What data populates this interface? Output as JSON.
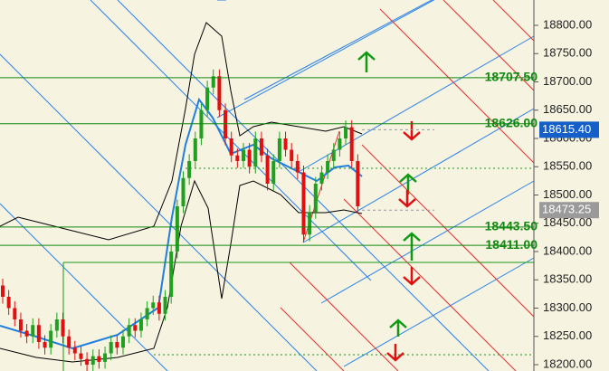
{
  "chart_data": {
    "type": "candlestick",
    "up_color": "#1fa01f",
    "down_color": "#e01010",
    "open": [
      18340,
      18320,
      18300,
      18280,
      18260,
      18250,
      18270,
      18240,
      18230,
      18260,
      18280,
      18250,
      18230,
      18220,
      18210,
      18200,
      18215,
      18205,
      18220,
      18240,
      18230,
      18250,
      18270,
      18260,
      18280,
      18300,
      18310,
      18290,
      18320,
      18400,
      18480,
      18530,
      18560,
      18600,
      18650,
      18690,
      18710,
      18650,
      18600,
      18570,
      18560,
      18580,
      18550,
      18600,
      18570,
      18520,
      18560,
      18600,
      18580,
      18560,
      18540,
      18430,
      18470,
      18520,
      18540,
      18560,
      18580,
      18600,
      18620,
      18560
    ],
    "high": [
      18352,
      18332,
      18312,
      18292,
      18272,
      18282,
      18282,
      18252,
      18272,
      18292,
      18292,
      18262,
      18242,
      18232,
      18222,
      18227,
      18227,
      18232,
      18252,
      18252,
      18262,
      18282,
      18282,
      18292,
      18312,
      18322,
      18322,
      18332,
      18412,
      18492,
      18542,
      18572,
      18612,
      18662,
      18702,
      18722,
      18722,
      18662,
      18612,
      18582,
      18592,
      18592,
      18612,
      18612,
      18582,
      18572,
      18612,
      18612,
      18592,
      18572,
      18552,
      18482,
      18532,
      18552,
      18572,
      18592,
      18612,
      18632,
      18632,
      18572
    ],
    "low": [
      18308,
      18288,
      18268,
      18248,
      18238,
      18238,
      18228,
      18218,
      18218,
      18248,
      18238,
      18218,
      18208,
      18198,
      18188,
      18188,
      18193,
      18193,
      18208,
      18218,
      18218,
      18238,
      18248,
      18248,
      18268,
      18288,
      18278,
      18278,
      18308,
      18388,
      18468,
      18518,
      18548,
      18588,
      18638,
      18678,
      18638,
      18588,
      18558,
      18548,
      18548,
      18538,
      18538,
      18558,
      18508,
      18508,
      18548,
      18568,
      18548,
      18528,
      18418,
      18418,
      18458,
      18508,
      18528,
      18548,
      18568,
      18588,
      18548,
      18468
    ],
    "close": [
      18320,
      18300,
      18280,
      18260,
      18250,
      18270,
      18240,
      18230,
      18260,
      18280,
      18250,
      18230,
      18220,
      18210,
      18200,
      18215,
      18205,
      18220,
      18240,
      18230,
      18250,
      18270,
      18260,
      18280,
      18300,
      18310,
      18290,
      18320,
      18400,
      18480,
      18530,
      18560,
      18600,
      18650,
      18690,
      18710,
      18650,
      18600,
      18570,
      18560,
      18580,
      18550,
      18600,
      18570,
      18520,
      18560,
      18600,
      18580,
      18560,
      18540,
      18430,
      18470,
      18520,
      18540,
      18560,
      18580,
      18600,
      18620,
      18560,
      18480
    ],
    "ylim": [
      18188.8,
      18844.8
    ],
    "yticks": [
      {
        "value": 18200,
        "label": "18200.00"
      },
      {
        "value": 18250,
        "label": "18250.00"
      },
      {
        "value": 18300,
        "label": "18300.00"
      },
      {
        "value": 18350,
        "label": "18350.00"
      },
      {
        "value": 18400,
        "label": "18400.00"
      },
      {
        "value": 18450,
        "label": "18450.00"
      },
      {
        "value": 18500,
        "label": "18500.00"
      },
      {
        "value": 18550,
        "label": "18550.00"
      },
      {
        "value": 18600,
        "label": "18600.00"
      },
      {
        "value": 18650,
        "label": "18650.00"
      },
      {
        "value": 18700,
        "label": "18700.00"
      },
      {
        "value": 18750,
        "label": "18750.00"
      },
      {
        "value": 18800,
        "label": "18800.00"
      }
    ],
    "levels": [
      {
        "value": 18707.5,
        "label": "18707.50"
      },
      {
        "value": 18626,
        "label": "18626.00"
      },
      {
        "value": 18443.5,
        "label": "18443.50"
      },
      {
        "value": 18411,
        "label": "18411.00"
      }
    ],
    "level_color": "#118811",
    "price_tags": [
      {
        "value": 18615.4,
        "label": "18615.40",
        "color": "#1560c8"
      },
      {
        "value": 18473.25,
        "label": "18473.25",
        "color": "#9a9a9a"
      }
    ]
  }
}
